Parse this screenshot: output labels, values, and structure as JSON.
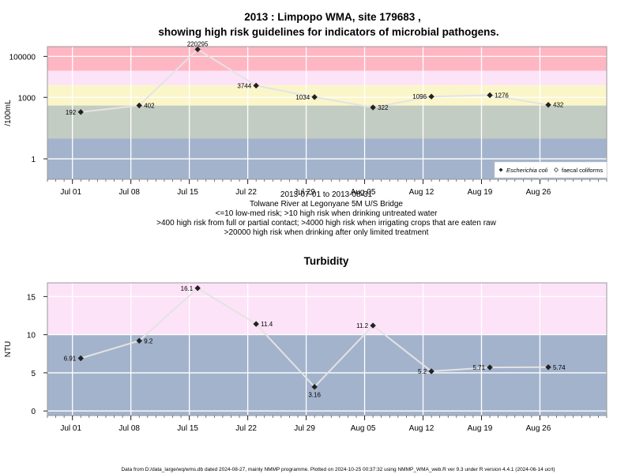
{
  "page": {
    "title_line1": "2013 : Limpopo WMA, site 179683 ,",
    "title_line2": "showing high risk guidelines for indicators of microbial pathogens.",
    "sub_lines": [
      "2013-07-01 to 2013-08-31",
      "Tolwane River at Legonyane 5M U/S Bridge",
      "<=10 low-med risk; >10 high risk when drinking untreated water",
      ">400 high risk from full or partial contact; >4000 high risk when irrigating crops that are eaten raw",
      ">20000 high risk when drinking after only limited treatment"
    ],
    "footer": "Data from D:/data_large/wq/wms.db dated 2024-08-27, mainly NMMP programme. Plotted on 2024-10-25 00:37:32 using NMMP_WMA_web.R ver 9.3 under R version 4.4.1 (2024-06-14 ucrt)"
  },
  "chart_data": [
    {
      "type": "line",
      "title": "",
      "ylabel": "/100mL",
      "yscale": "log",
      "ylim": [
        0.1,
        300000
      ],
      "yticks": [
        1,
        1000,
        100000
      ],
      "ytick_labels": [
        "1",
        "1000",
        "100000"
      ],
      "xticks": [
        "Jul 01",
        "Jul 08",
        "Jul 15",
        "Jul 22",
        "Jul 29",
        "Aug 05",
        "Aug 12",
        "Aug 19",
        "Aug 26"
      ],
      "xtick_dates": [
        "2013-07-01",
        "2013-07-08",
        "2013-07-15",
        "2013-07-22",
        "2013-07-29",
        "2013-08-05",
        "2013-08-12",
        "2013-08-19",
        "2013-08-26"
      ],
      "xlim": [
        "2013-06-28",
        "2013-09-03"
      ],
      "bands": [
        {
          "from": 0.1,
          "to": 10,
          "color": "#a3b3cc"
        },
        {
          "from": 10,
          "to": 400,
          "color": "#c3ccc2"
        },
        {
          "from": 400,
          "to": 4000,
          "color": "#fbf6c9"
        },
        {
          "from": 4000,
          "to": 20000,
          "color": "#fde3f7"
        },
        {
          "from": 20000,
          "to": 300000,
          "color": "#ffb6c3"
        }
      ],
      "legend": {
        "placement": "bottom-right",
        "entries": [
          "Escherichia coli",
          "faecal coliforms"
        ]
      },
      "series": [
        {
          "name": "Escherichia coli",
          "points": [
            {
              "date": "2013-07-02",
              "value": 192,
              "label": "192"
            },
            {
              "date": "2013-07-09",
              "value": 402,
              "label": "402"
            },
            {
              "date": "2013-07-16",
              "value": 220295,
              "label": "220295"
            },
            {
              "date": "2013-07-23",
              "value": 3744,
              "label": "3744"
            },
            {
              "date": "2013-07-30",
              "value": 1034,
              "label": "1034"
            },
            {
              "date": "2013-08-06",
              "value": 322,
              "label": "322"
            },
            {
              "date": "2013-08-13",
              "value": 1096,
              "label": "1096"
            },
            {
              "date": "2013-08-20",
              "value": 1276,
              "label": "1276"
            },
            {
              "date": "2013-08-27",
              "value": 432,
              "label": "432"
            }
          ]
        }
      ]
    },
    {
      "type": "line",
      "title": "Turbidity",
      "ylabel": "NTU",
      "yscale": "linear",
      "ylim": [
        -0.6,
        16.8
      ],
      "yticks": [
        0,
        5,
        10,
        15
      ],
      "ytick_labels": [
        "0",
        "5",
        "10",
        "15"
      ],
      "xticks": [
        "Jul 01",
        "Jul 08",
        "Jul 15",
        "Jul 22",
        "Jul 29",
        "Aug 05",
        "Aug 12",
        "Aug 19",
        "Aug 26"
      ],
      "xtick_dates": [
        "2013-07-01",
        "2013-07-08",
        "2013-07-15",
        "2013-07-22",
        "2013-07-29",
        "2013-08-05",
        "2013-08-12",
        "2013-08-19",
        "2013-08-26"
      ],
      "xlim": [
        "2013-06-28",
        "2013-09-03"
      ],
      "bands": [
        {
          "from": -0.6,
          "to": 10,
          "color": "#a3b3cc"
        },
        {
          "from": 10,
          "to": 16.8,
          "color": "#fde3f7"
        }
      ],
      "series": [
        {
          "points": [
            {
              "date": "2013-07-02",
              "value": 6.91,
              "label": "6.91"
            },
            {
              "date": "2013-07-09",
              "value": 9.2,
              "label": "9.2"
            },
            {
              "date": "2013-07-16",
              "value": 16.1,
              "label": "16.1"
            },
            {
              "date": "2013-07-23",
              "value": 11.4,
              "label": "11.4"
            },
            {
              "date": "2013-07-30",
              "value": 3.16,
              "label": "3.16"
            },
            {
              "date": "2013-08-06",
              "value": 11.2,
              "label": "11.2"
            },
            {
              "date": "2013-08-13",
              "value": 5.2,
              "label": "5.2"
            },
            {
              "date": "2013-08-20",
              "value": 5.71,
              "label": "5.71"
            },
            {
              "date": "2013-08-27",
              "value": 5.74,
              "label": "5.74"
            }
          ]
        }
      ]
    }
  ]
}
